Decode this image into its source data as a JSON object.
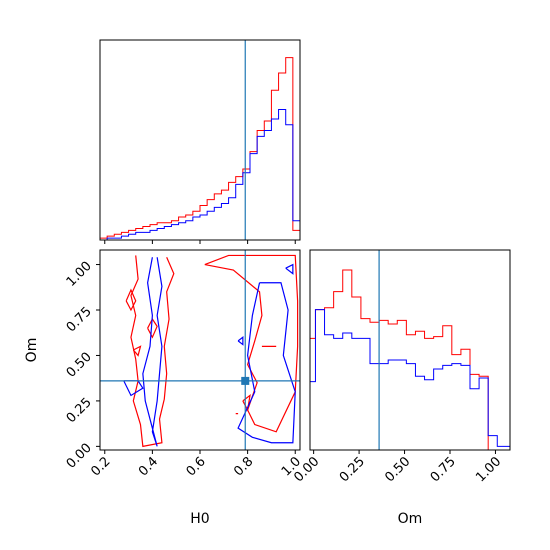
{
  "chart_data": {
    "type": "corner",
    "parameters": [
      "H0",
      "Om"
    ],
    "truth": {
      "H0": 0.79,
      "Om": 0.36
    },
    "colors": {
      "red": "#ff0000",
      "blue": "#0000ff",
      "truth": "#1f77b4"
    },
    "h0_hist": {
      "xlim": [
        0.18,
        1.02
      ],
      "bin_edges": [
        0.18,
        0.21,
        0.24,
        0.27,
        0.3,
        0.33,
        0.36,
        0.39,
        0.42,
        0.45,
        0.48,
        0.51,
        0.54,
        0.57,
        0.6,
        0.63,
        0.66,
        0.69,
        0.72,
        0.75,
        0.78,
        0.81,
        0.84,
        0.87,
        0.9,
        0.93,
        0.96,
        0.99,
        1.02
      ],
      "red": [
        0.01,
        0.02,
        0.03,
        0.04,
        0.05,
        0.06,
        0.07,
        0.08,
        0.09,
        0.09,
        0.1,
        0.12,
        0.13,
        0.15,
        0.18,
        0.21,
        0.24,
        0.26,
        0.3,
        0.33,
        0.37,
        0.46,
        0.57,
        0.62,
        0.78,
        0.87,
        0.95,
        0.05
      ],
      "blue": [
        0.0,
        0.01,
        0.01,
        0.02,
        0.03,
        0.04,
        0.04,
        0.05,
        0.06,
        0.07,
        0.08,
        0.09,
        0.1,
        0.12,
        0.13,
        0.15,
        0.17,
        0.19,
        0.22,
        0.29,
        0.35,
        0.45,
        0.54,
        0.57,
        0.63,
        0.68,
        0.6,
        0.1
      ]
    },
    "om_hist": {
      "xlim": [
        -0.02,
        1.08
      ],
      "bin_edges": [
        -0.02,
        0.01,
        0.06,
        0.11,
        0.16,
        0.21,
        0.26,
        0.31,
        0.36,
        0.41,
        0.46,
        0.51,
        0.56,
        0.61,
        0.66,
        0.71,
        0.76,
        0.81,
        0.86,
        0.91,
        0.96,
        1.01,
        1.08
      ],
      "red": [
        0.62,
        0.78,
        0.79,
        0.88,
        1.0,
        0.85,
        0.73,
        0.71,
        0.72,
        0.7,
        0.72,
        0.64,
        0.66,
        0.62,
        0.63,
        0.69,
        0.53,
        0.56,
        0.42,
        0.41,
        0.0,
        0.0
      ],
      "blue": [
        0.38,
        0.78,
        0.64,
        0.62,
        0.65,
        0.62,
        0.62,
        0.48,
        0.48,
        0.5,
        0.5,
        0.48,
        0.41,
        0.39,
        0.45,
        0.47,
        0.48,
        0.47,
        0.34,
        0.4,
        0.08,
        0.02
      ]
    },
    "joint": {
      "xlim": [
        0.18,
        1.02
      ],
      "ylim": [
        -0.02,
        1.08
      ],
      "red_contours": [
        [
          [
            0.33,
            1.05
          ],
          [
            0.34,
            0.92
          ],
          [
            0.31,
            0.83
          ],
          [
            0.33,
            0.72
          ],
          [
            0.31,
            0.6
          ],
          [
            0.33,
            0.48
          ],
          [
            0.34,
            0.36
          ],
          [
            0.32,
            0.25
          ],
          [
            0.35,
            0.12
          ],
          [
            0.36,
            0.0
          ],
          [
            0.44,
            0.02
          ],
          [
            0.43,
            0.15
          ],
          [
            0.45,
            0.26
          ],
          [
            0.46,
            0.4
          ],
          [
            0.45,
            0.55
          ],
          [
            0.47,
            0.7
          ],
          [
            0.46,
            0.85
          ],
          [
            0.49,
            0.95
          ],
          [
            0.46,
            1.04
          ]
        ],
        [
          [
            0.29,
            0.8
          ],
          [
            0.31,
            0.75
          ],
          [
            0.33,
            0.8
          ],
          [
            0.31,
            0.86
          ],
          [
            0.29,
            0.8
          ]
        ],
        [
          [
            0.38,
            0.65
          ],
          [
            0.4,
            0.6
          ],
          [
            0.42,
            0.66
          ],
          [
            0.4,
            0.7
          ],
          [
            0.38,
            0.65
          ]
        ],
        [
          [
            0.32,
            0.53
          ],
          [
            0.34,
            0.5
          ],
          [
            0.35,
            0.55
          ],
          [
            0.32,
            0.53
          ]
        ],
        [
          [
            0.62,
            1.0
          ],
          [
            0.72,
            1.05
          ],
          [
            0.85,
            1.05
          ],
          [
            1.0,
            1.05
          ],
          [
            1.01,
            0.8
          ],
          [
            1.01,
            0.55
          ],
          [
            1.0,
            0.3
          ],
          [
            0.92,
            0.08
          ],
          [
            0.83,
            0.12
          ],
          [
            0.8,
            0.2
          ],
          [
            0.84,
            0.35
          ],
          [
            0.8,
            0.45
          ],
          [
            0.83,
            0.58
          ],
          [
            0.86,
            0.72
          ],
          [
            0.85,
            0.85
          ],
          [
            0.74,
            0.97
          ],
          [
            0.62,
            1.0
          ]
        ],
        [
          [
            0.86,
            0.55
          ],
          [
            0.89,
            0.55
          ],
          [
            0.92,
            0.55
          ],
          [
            0.86,
            0.55
          ]
        ],
        [
          [
            0.75,
            0.18
          ],
          [
            0.76,
            0.18
          ],
          [
            0.75,
            0.18
          ]
        ],
        [
          [
            0.78,
            0.25
          ],
          [
            0.8,
            0.2
          ],
          [
            0.81,
            0.28
          ],
          [
            0.78,
            0.25
          ]
        ]
      ],
      "blue_contours": [
        [
          [
            0.4,
            1.04
          ],
          [
            0.38,
            0.9
          ],
          [
            0.4,
            0.72
          ],
          [
            0.39,
            0.55
          ],
          [
            0.36,
            0.4
          ],
          [
            0.37,
            0.25
          ],
          [
            0.4,
            0.1
          ],
          [
            0.42,
            0.0
          ],
          [
            0.4,
            0.08
          ],
          [
            0.42,
            0.25
          ],
          [
            0.43,
            0.4
          ],
          [
            0.44,
            0.55
          ],
          [
            0.42,
            0.72
          ],
          [
            0.44,
            0.88
          ],
          [
            0.42,
            1.04
          ]
        ],
        [
          [
            0.28,
            0.36
          ],
          [
            0.34,
            0.36
          ],
          [
            0.36,
            0.32
          ],
          [
            0.31,
            0.28
          ],
          [
            0.28,
            0.36
          ]
        ],
        [
          [
            0.76,
            0.58
          ],
          [
            0.78,
            0.56
          ],
          [
            0.78,
            0.6
          ],
          [
            0.76,
            0.58
          ]
        ],
        [
          [
            0.85,
            0.9
          ],
          [
            0.82,
            0.72
          ],
          [
            0.8,
            0.5
          ],
          [
            0.83,
            0.3
          ],
          [
            0.76,
            0.1
          ],
          [
            0.82,
            0.05
          ],
          [
            0.9,
            0.02
          ],
          [
            0.99,
            0.02
          ],
          [
            1.0,
            0.3
          ],
          [
            0.95,
            0.5
          ],
          [
            0.97,
            0.75
          ],
          [
            0.94,
            0.9
          ],
          [
            0.85,
            0.9
          ]
        ],
        [
          [
            0.96,
            0.98
          ],
          [
            0.99,
            0.95
          ],
          [
            0.99,
            1.0
          ],
          [
            0.96,
            0.98
          ]
        ]
      ]
    },
    "ticks": {
      "h0": [
        "0.2",
        "0.4",
        "0.6",
        "0.8",
        "1.0"
      ],
      "om": [
        "0.00",
        "0.25",
        "0.50",
        "0.75",
        "1.00"
      ]
    },
    "xlabels": [
      "H0",
      "Om"
    ],
    "ylabel": "Om"
  }
}
